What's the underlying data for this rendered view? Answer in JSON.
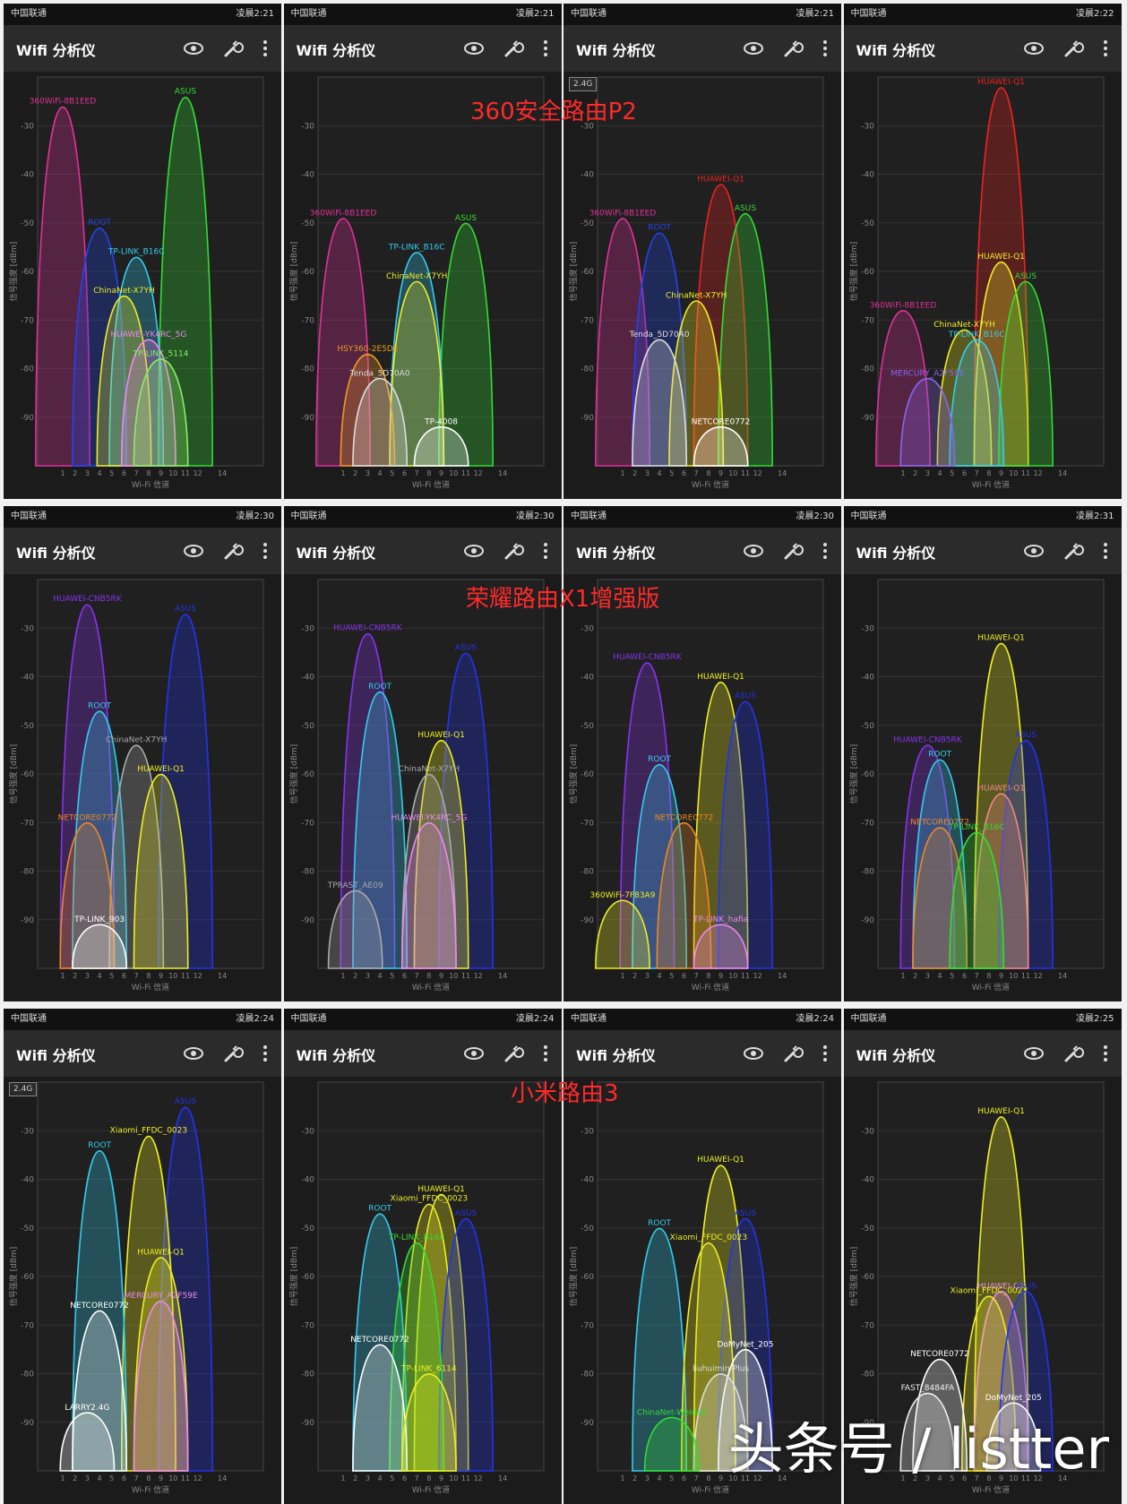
{
  "app_title": "Wifi 分析仪",
  "axis": {
    "y_label": "信号强度 [dBm]",
    "x_label": "Wi-Fi 信道",
    "y_ticks": [
      "-30",
      "-40",
      "-50",
      "-60",
      "-70",
      "-80",
      "-90"
    ],
    "x_ticks": [
      "1",
      "2",
      "3",
      "4",
      "5",
      "6",
      "7",
      "8",
      "9",
      "10",
      "11",
      "12",
      "14"
    ]
  },
  "captions": {
    "row1": "360安全路由P2",
    "row2": "荣耀路由X1增强版",
    "row3": "小米路由3"
  },
  "watermark": "头条号 / listter",
  "band_badge": "2.4G",
  "colors": {
    "background": "#1b1b1b",
    "appbar": "#2b2b2b",
    "caption": "#ff2a2a"
  },
  "screens": [
    {
      "carrier": "中国联通",
      "time": "凌晨2:21",
      "badge": false,
      "networks": [
        {
          "ssid": "360WiFi-8B1EED",
          "ch": 1,
          "dbm": -26,
          "color": "#e0309a"
        },
        {
          "ssid": "ASUS",
          "ch": 11,
          "dbm": -24,
          "color": "#33dd33"
        },
        {
          "ssid": "ROOT",
          "ch": 4,
          "dbm": -51,
          "color": "#2244ee"
        },
        {
          "ssid": "TP-LINK_B16C",
          "ch": 7,
          "dbm": -57,
          "color": "#33ccee"
        },
        {
          "ssid": "ChinaNet-X7YH",
          "ch": 6,
          "dbm": -65,
          "color": "#eeee22"
        },
        {
          "ssid": "HUAWEI-YK4RC_5G",
          "ch": 8,
          "dbm": -74,
          "color": "#ee88ee"
        },
        {
          "ssid": "TP-LINK_5114",
          "ch": 9,
          "dbm": -78,
          "color": "#88ee66"
        }
      ]
    },
    {
      "carrier": "中国联通",
      "time": "凌晨2:21",
      "badge": false,
      "networks": [
        {
          "ssid": "360WiFi-8B1EED",
          "ch": 1,
          "dbm": -49,
          "color": "#e0309a"
        },
        {
          "ssid": "ASUS",
          "ch": 11,
          "dbm": -50,
          "color": "#33dd33"
        },
        {
          "ssid": "TP-LINK_B16C",
          "ch": 7,
          "dbm": -56,
          "color": "#33ccee"
        },
        {
          "ssid": "ChinaNet-X7YH",
          "ch": 7,
          "dbm": -62,
          "color": "#eeee22"
        },
        {
          "ssid": "HSY360-2E5DE",
          "ch": 3,
          "dbm": -77,
          "color": "#ee9922"
        },
        {
          "ssid": "Tenda_5D70A0",
          "ch": 4,
          "dbm": -82,
          "color": "#dddddd"
        },
        {
          "ssid": "TP-4008",
          "ch": 9,
          "dbm": -92,
          "color": "#ffffff"
        }
      ]
    },
    {
      "carrier": "中国联通",
      "time": "凌晨2:21",
      "badge": true,
      "networks": [
        {
          "ssid": "360WiFi-8B1EED",
          "ch": 1,
          "dbm": -49,
          "color": "#e0309a"
        },
        {
          "ssid": "ROOT",
          "ch": 4,
          "dbm": -52,
          "color": "#2244ee"
        },
        {
          "ssid": "HUAWEI-Q1",
          "ch": 9,
          "dbm": -42,
          "color": "#ee2222"
        },
        {
          "ssid": "ASUS",
          "ch": 11,
          "dbm": -48,
          "color": "#33dd33"
        },
        {
          "ssid": "ChinaNet-X7YH",
          "ch": 7,
          "dbm": -66,
          "color": "#eeee22"
        },
        {
          "ssid": "Tenda_5D70A0",
          "ch": 4,
          "dbm": -74,
          "color": "#dddddd"
        },
        {
          "ssid": "NETCORE0772",
          "ch": 9,
          "dbm": -92,
          "color": "#ffffff"
        }
      ]
    },
    {
      "carrier": "中国联通",
      "time": "凌晨2:22",
      "badge": false,
      "networks": [
        {
          "ssid": "HUAWEI-Q1",
          "ch": 9,
          "dbm": -22,
          "color": "#ee2222"
        },
        {
          "ssid": "HUAWEI-Q1",
          "ch": 9,
          "dbm": -58,
          "color": "#eeee22"
        },
        {
          "ssid": "ASUS",
          "ch": 11,
          "dbm": -62,
          "color": "#33dd33"
        },
        {
          "ssid": "360WiFi-8B1EED",
          "ch": 1,
          "dbm": -68,
          "color": "#e0309a"
        },
        {
          "ssid": "ChinaNet-X7YH",
          "ch": 6,
          "dbm": -72,
          "color": "#eeee22"
        },
        {
          "ssid": "TP-LINK_B16C",
          "ch": 7,
          "dbm": -74,
          "color": "#33ccee"
        },
        {
          "ssid": "MERCURY_A2F59E",
          "ch": 3,
          "dbm": -82,
          "color": "#8866ee"
        }
      ]
    },
    {
      "carrier": "中国联通",
      "time": "凌晨2:30",
      "badge": false,
      "networks": [
        {
          "ssid": "HUAWEI-CNB5RK",
          "ch": 3,
          "dbm": -25,
          "color": "#8833ee"
        },
        {
          "ssid": "ASUS",
          "ch": 11,
          "dbm": -27,
          "color": "#2233ee"
        },
        {
          "ssid": "ROOT",
          "ch": 4,
          "dbm": -47,
          "color": "#33ccee"
        },
        {
          "ssid": "ChinaNet-X7YH",
          "ch": 7,
          "dbm": -54,
          "color": "#aaaaaa"
        },
        {
          "ssid": "HUAWEI-Q1",
          "ch": 9,
          "dbm": -60,
          "color": "#eeee22"
        },
        {
          "ssid": "NETCORE0772",
          "ch": 3,
          "dbm": -70,
          "color": "#ee8822"
        },
        {
          "ssid": "TP-LINK_903",
          "ch": 4,
          "dbm": -91,
          "color": "#ffffff"
        }
      ]
    },
    {
      "carrier": "中国联通",
      "time": "凌晨2:30",
      "badge": false,
      "networks": [
        {
          "ssid": "HUAWEI-CNB5RK",
          "ch": 3,
          "dbm": -31,
          "color": "#8833ee"
        },
        {
          "ssid": "ASUS",
          "ch": 11,
          "dbm": -35,
          "color": "#2233ee"
        },
        {
          "ssid": "ROOT",
          "ch": 4,
          "dbm": -43,
          "color": "#33ccee"
        },
        {
          "ssid": "HUAWEI-Q1",
          "ch": 9,
          "dbm": -53,
          "color": "#eeee22"
        },
        {
          "ssid": "ChinaNet-X7YH",
          "ch": 8,
          "dbm": -60,
          "color": "#aaaaaa"
        },
        {
          "ssid": "HUAWEI-YK4RC_5G",
          "ch": 8,
          "dbm": -70,
          "color": "#ee88ee"
        },
        {
          "ssid": "TPRAST_AE09",
          "ch": 2,
          "dbm": -84,
          "color": "#aaaaaa"
        }
      ]
    },
    {
      "carrier": "中国联通",
      "time": "凌晨2:30",
      "badge": false,
      "networks": [
        {
          "ssid": "HUAWEI-CNB5RK",
          "ch": 3,
          "dbm": -37,
          "color": "#8833ee"
        },
        {
          "ssid": "HUAWEI-Q1",
          "ch": 9,
          "dbm": -41,
          "color": "#eeee22"
        },
        {
          "ssid": "ASUS",
          "ch": 11,
          "dbm": -45,
          "color": "#2233ee"
        },
        {
          "ssid": "ROOT",
          "ch": 4,
          "dbm": -58,
          "color": "#33ccee"
        },
        {
          "ssid": "NETCORE0772",
          "ch": 6,
          "dbm": -70,
          "color": "#ee8822"
        },
        {
          "ssid": "360WiFi-7F83A9",
          "ch": 1,
          "dbm": -86,
          "color": "#eeee22"
        },
        {
          "ssid": "TP-LINK_hafia",
          "ch": 9,
          "dbm": -91,
          "color": "#ee88ee"
        }
      ]
    },
    {
      "carrier": "中国联通",
      "time": "凌晨2:31",
      "badge": false,
      "networks": [
        {
          "ssid": "HUAWEI-Q1",
          "ch": 9,
          "dbm": -33,
          "color": "#eeee22"
        },
        {
          "ssid": "HUAWEI-CNB5RK",
          "ch": 3,
          "dbm": -54,
          "color": "#8833ee"
        },
        {
          "ssid": "ROOT",
          "ch": 4,
          "dbm": -57,
          "color": "#33ccee"
        },
        {
          "ssid": "ASUS",
          "ch": 11,
          "dbm": -53,
          "color": "#2233ee"
        },
        {
          "ssid": "HUAWEI-Q1",
          "ch": 9,
          "dbm": -64,
          "color": "#ee8888"
        },
        {
          "ssid": "NETCORE0772",
          "ch": 4,
          "dbm": -71,
          "color": "#ee8822"
        },
        {
          "ssid": "TP-LINK_B16C",
          "ch": 7,
          "dbm": -72,
          "color": "#33dd33"
        }
      ]
    },
    {
      "carrier": "中国联通",
      "time": "凌晨2:24",
      "badge": true,
      "networks": [
        {
          "ssid": "ASUS",
          "ch": 11,
          "dbm": -25,
          "color": "#2233ee"
        },
        {
          "ssid": "Xiaomi_FFDC_0023",
          "ch": 8,
          "dbm": -31,
          "color": "#eeee22"
        },
        {
          "ssid": "ROOT",
          "ch": 4,
          "dbm": -34,
          "color": "#33ccee"
        },
        {
          "ssid": "HUAWEI-Q1",
          "ch": 9,
          "dbm": -56,
          "color": "#eeee22"
        },
        {
          "ssid": "MERCURY_A2F59E",
          "ch": 9,
          "dbm": -65,
          "color": "#ee88ee"
        },
        {
          "ssid": "NETCORE0772",
          "ch": 4,
          "dbm": -67,
          "color": "#ffffff"
        },
        {
          "ssid": "LARRY2.4G",
          "ch": 3,
          "dbm": -88,
          "color": "#ffffff"
        }
      ]
    },
    {
      "carrier": "中国联通",
      "time": "凌晨2:24",
      "badge": false,
      "networks": [
        {
          "ssid": "HUAWEI-Q1",
          "ch": 9,
          "dbm": -43,
          "color": "#eeee22"
        },
        {
          "ssid": "Xiaomi_FFDC_0023",
          "ch": 8,
          "dbm": -45,
          "color": "#eeee22"
        },
        {
          "ssid": "ASUS",
          "ch": 11,
          "dbm": -48,
          "color": "#2233ee"
        },
        {
          "ssid": "ROOT",
          "ch": 4,
          "dbm": -47,
          "color": "#33ccee"
        },
        {
          "ssid": "TP-LINK_B16C",
          "ch": 7,
          "dbm": -53,
          "color": "#33dd33"
        },
        {
          "ssid": "NETCORE0772",
          "ch": 4,
          "dbm": -74,
          "color": "#ffffff"
        },
        {
          "ssid": "TP-LINK_6114",
          "ch": 8,
          "dbm": -80,
          "color": "#eeee22"
        }
      ]
    },
    {
      "carrier": "中国联通",
      "time": "凌晨2:24",
      "badge": false,
      "networks": [
        {
          "ssid": "HUAWEI-Q1",
          "ch": 9,
          "dbm": -37,
          "color": "#eeee22"
        },
        {
          "ssid": "ASUS",
          "ch": 11,
          "dbm": -48,
          "color": "#2233ee"
        },
        {
          "ssid": "ROOT",
          "ch": 4,
          "dbm": -50,
          "color": "#33ccee"
        },
        {
          "ssid": "Xiaomi_FFDC_0023",
          "ch": 8,
          "dbm": -53,
          "color": "#eeee22"
        },
        {
          "ssid": "DoMyNet_205",
          "ch": 11,
          "dbm": -75,
          "color": "#ffffff"
        },
        {
          "ssid": "liuhuimin-Plus",
          "ch": 9,
          "dbm": -80,
          "color": "#dddddd"
        },
        {
          "ssid": "ChinaNet-Weidan",
          "ch": 5,
          "dbm": -89,
          "color": "#33dd33"
        }
      ]
    },
    {
      "carrier": "中国联通",
      "time": "凌晨2:25",
      "badge": false,
      "networks": [
        {
          "ssid": "HUAWEI-Q1",
          "ch": 9,
          "dbm": -27,
          "color": "#eeee22"
        },
        {
          "ssid": "HUAWEI-Q1",
          "ch": 9,
          "dbm": -63,
          "color": "#ee88ee"
        },
        {
          "ssid": "Xiaomi_FFDC_0023",
          "ch": 8,
          "dbm": -64,
          "color": "#eeee22"
        },
        {
          "ssid": "ASUS",
          "ch": 11,
          "dbm": -63,
          "color": "#2233ee"
        },
        {
          "ssid": "NETCORE0772",
          "ch": 4,
          "dbm": -77,
          "color": "#ffffff"
        },
        {
          "ssid": "FAST_8484FA",
          "ch": 3,
          "dbm": -84,
          "color": "#eeeeee"
        },
        {
          "ssid": "DoMyNet_205",
          "ch": 10,
          "dbm": -86,
          "color": "#ffffff"
        }
      ]
    }
  ]
}
